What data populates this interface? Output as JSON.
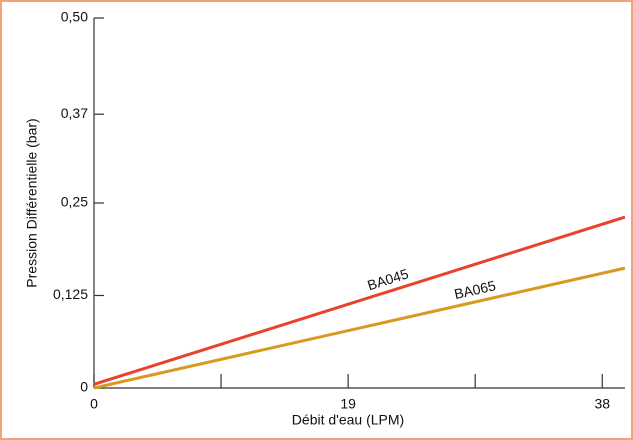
{
  "chart_data": {
    "type": "line",
    "xlabel": "Débit d'eau (LPM)",
    "ylabel": "Pression Différentielle (bar)",
    "xlim": [
      0,
      39.7
    ],
    "xticks": [
      0,
      19,
      38
    ],
    "xminor_ticks": [
      9.5,
      28.5
    ],
    "ylim": [
      0,
      0.5
    ],
    "yticks": [
      0,
      {
        "value": 0.125,
        "label": "0,125"
      },
      {
        "value": 0.25,
        "label": "0,25"
      },
      {
        "value": 0.37,
        "label": "0,37"
      },
      {
        "value": 0.5,
        "label": "0,50"
      }
    ],
    "series": [
      {
        "name": "BA045",
        "color": "#e8412c",
        "x": [
          0,
          39.7
        ],
        "values": [
          0.005,
          0.231
        ]
      },
      {
        "name": "BA065",
        "color": "#d89a1e",
        "x": [
          0,
          39.7
        ],
        "values": [
          0,
          0.162
        ]
      }
    ]
  }
}
